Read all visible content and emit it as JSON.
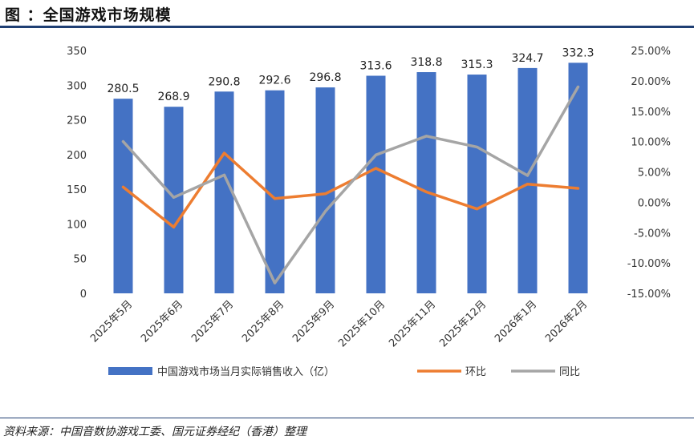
{
  "header": {
    "title": "图 ：全国游戏市场规模"
  },
  "footer": {
    "source": "资料来源：中国音数协游戏工委、国元证券经纪（香港）整理"
  },
  "colors": {
    "bar": "#4472c4",
    "mom": "#ed7d31",
    "yoy": "#a5a5a5",
    "rule": "#1f3f73"
  },
  "chart_data": {
    "type": "bar",
    "title": "全国游戏市场规模",
    "categories": [
      "2025年5月",
      "2025年6月",
      "2025年7月",
      "2025年8月",
      "2025年9月",
      "2025年10月",
      "2025年11月",
      "2025年12月",
      "2026年1月",
      "2026年2月"
    ],
    "series": [
      {
        "name": "中国游戏市场当月实际销售收入（亿）",
        "type": "bar",
        "axis": "left",
        "values": [
          280.5,
          268.9,
          290.8,
          292.6,
          296.8,
          313.6,
          318.8,
          315.3,
          324.7,
          332.3
        ],
        "labels": [
          "280.5",
          "268.9",
          "290.8",
          "292.6",
          "296.8",
          "313.6",
          "318.8",
          "315.3",
          "324.7",
          "332.3"
        ]
      },
      {
        "name": "环比",
        "type": "line",
        "axis": "right",
        "values": [
          2.5,
          -4.1,
          8.1,
          0.6,
          1.4,
          5.6,
          1.7,
          -1.1,
          3.0,
          2.3
        ]
      },
      {
        "name": "同比",
        "type": "line",
        "axis": "right",
        "values": [
          10.0,
          0.8,
          4.5,
          -13.3,
          -1.5,
          7.8,
          10.9,
          9.1,
          4.4,
          19.0
        ]
      }
    ],
    "left_axis": {
      "min": 0,
      "max": 350,
      "ticks": [
        "0",
        "50",
        "100",
        "150",
        "200",
        "250",
        "300",
        "350"
      ]
    },
    "right_axis": {
      "min": -15,
      "max": 25,
      "ticks": [
        "-15.00%",
        "-10.00%",
        "-5.00%",
        "0.00%",
        "5.00%",
        "10.00%",
        "15.00%",
        "20.00%",
        "25.00%"
      ]
    },
    "legend": [
      "中国游戏市场当月实际销售收入（亿）",
      "环比",
      "同比"
    ],
    "grid": false
  }
}
